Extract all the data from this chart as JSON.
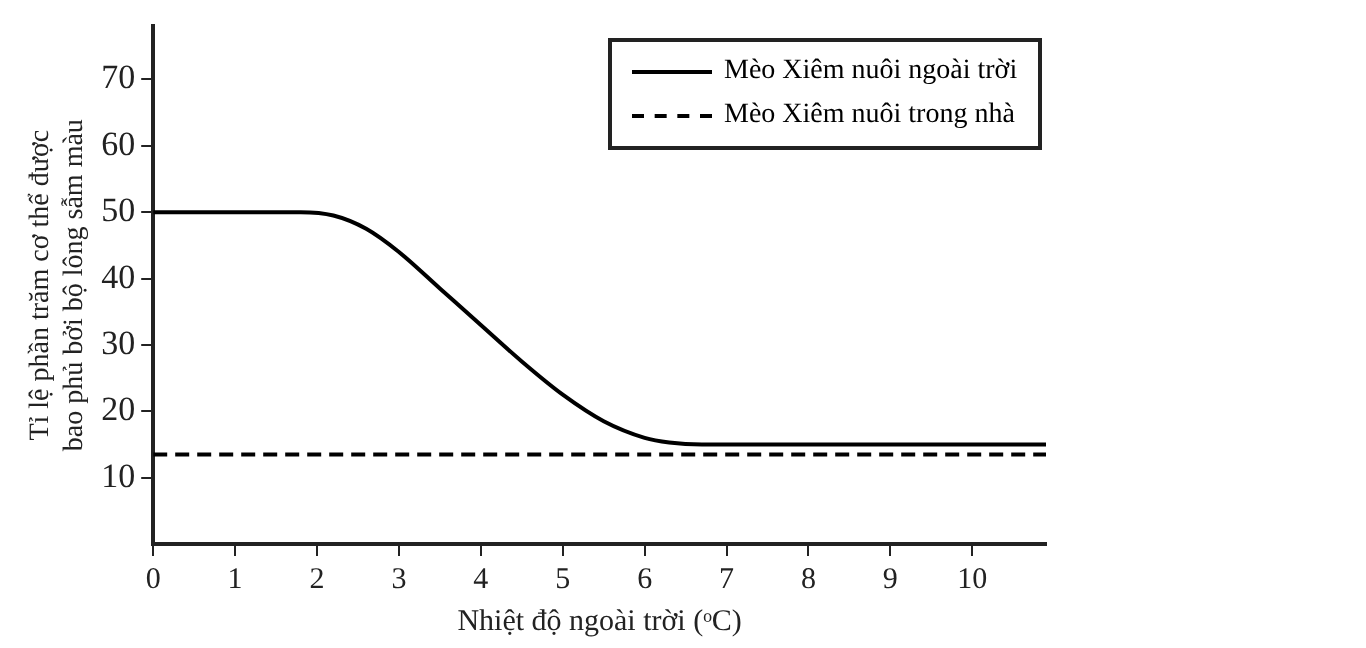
{
  "chart_data": {
    "type": "line",
    "xlabel": "Nhiệt độ ngoài trời (ᵒC)",
    "ylabel": "Tỉ lệ phần trăm cơ thể được bao phủ bởi bộ lông sẫm màu",
    "xlim": [
      0,
      10.9
    ],
    "xticks": [
      0,
      1,
      2,
      3,
      4,
      5,
      6,
      7,
      8,
      9,
      10
    ],
    "ylim": [
      0,
      78
    ],
    "yticks": [
      10,
      20,
      30,
      40,
      50,
      60,
      70
    ],
    "grid": false,
    "legend": "top right",
    "marker": "none",
    "series": [
      {
        "name": "Mèo Xiêm nuôi ngoài trời",
        "color": "#000000",
        "line_style": "solid",
        "x": [
          0,
          1.8,
          2.2,
          2.6,
          3,
          3.5,
          4,
          4.5,
          5,
          5.5,
          6,
          6.3,
          6.7,
          10.9
        ],
        "values": [
          50,
          50,
          49.5,
          47.5,
          44,
          38.5,
          33,
          27.5,
          22.5,
          18.5,
          16,
          15.3,
          15,
          15
        ]
      },
      {
        "name": "Mèo Xiêm nuôi trong nhà",
        "color": "#000000",
        "line_style": "dashed",
        "x": [
          0,
          10.9
        ],
        "values": [
          13.5,
          13.5
        ]
      }
    ]
  }
}
